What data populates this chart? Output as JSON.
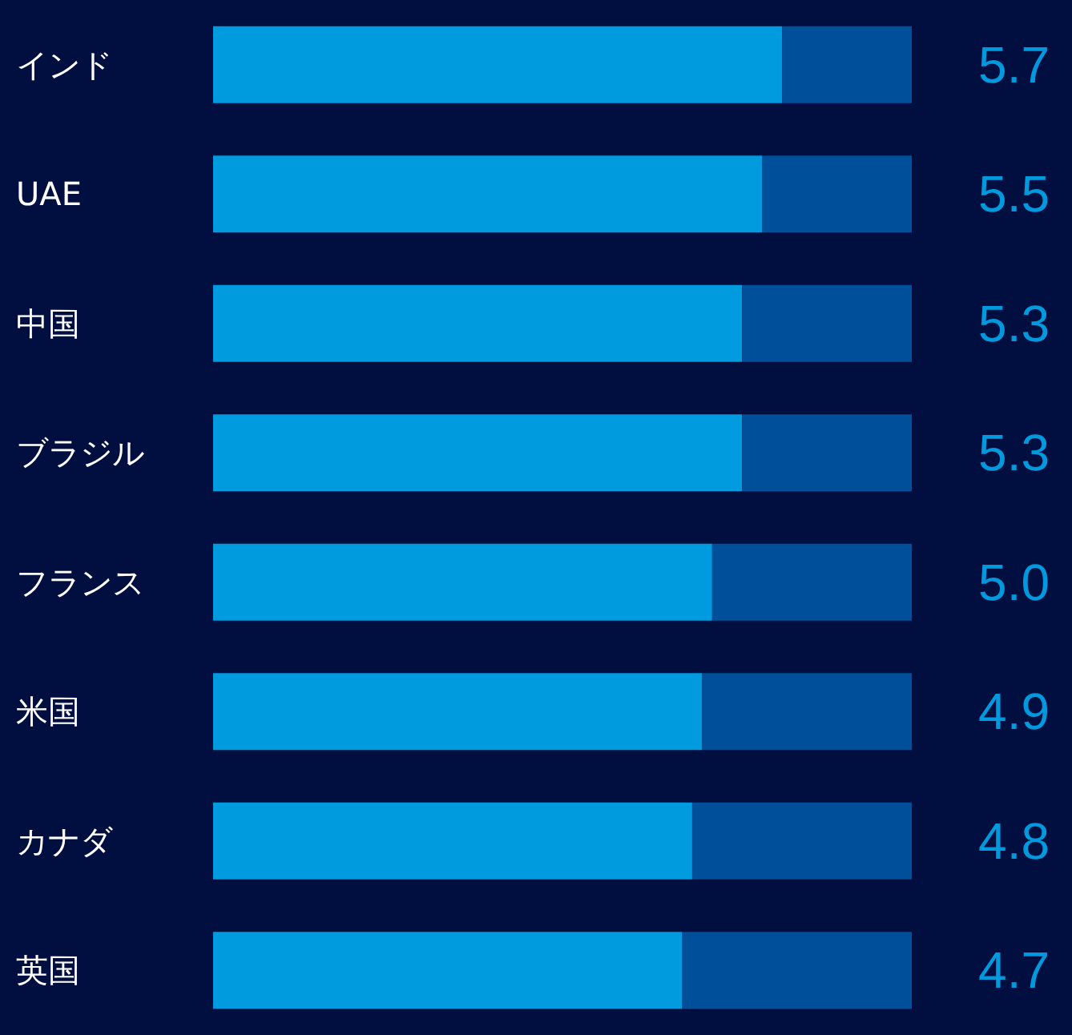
{
  "chart_data": {
    "type": "bar",
    "orientation": "horizontal",
    "stacked": true,
    "categories": [
      "インド",
      "UAE",
      "中国",
      "ブラジル",
      "フランス",
      "米国",
      "カナダ",
      "英国"
    ],
    "series": [
      {
        "color": "#009ade",
        "values": [
          5.7,
          5.5,
          5.3,
          5.3,
          5.0,
          4.9,
          4.8,
          4.7
        ],
        "value_labels": [
          "5.7",
          "5.5",
          "5.3",
          "5.3",
          "5.0",
          "4.9",
          "4.8",
          "4.7"
        ]
      },
      {
        "color": "#004f9a",
        "values": [
          1.3,
          1.5,
          1.7,
          1.7,
          2.0,
          2.1,
          2.2,
          2.3
        ]
      }
    ],
    "tick_labels": "y"
  }
}
